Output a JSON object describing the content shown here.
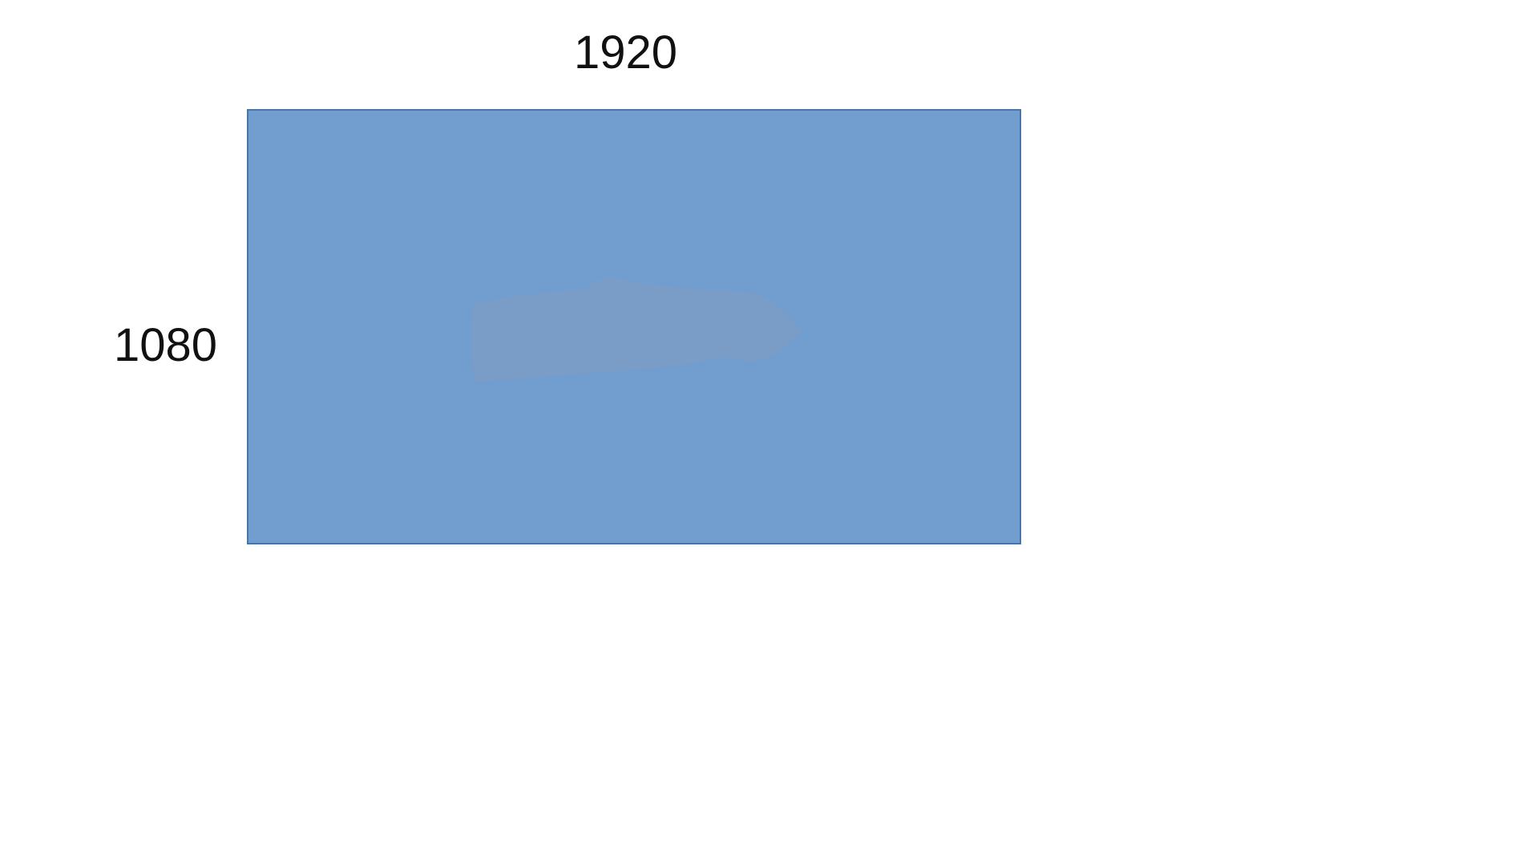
{
  "diagram": {
    "width_label": "1920",
    "height_label": "1080"
  },
  "colors": {
    "background": "#ffffff",
    "rectangle_fill": "#729ecf",
    "rectangle_border": "#4a74ac",
    "smudge_fill": "#7b9cc7",
    "label_text": "#111111"
  }
}
